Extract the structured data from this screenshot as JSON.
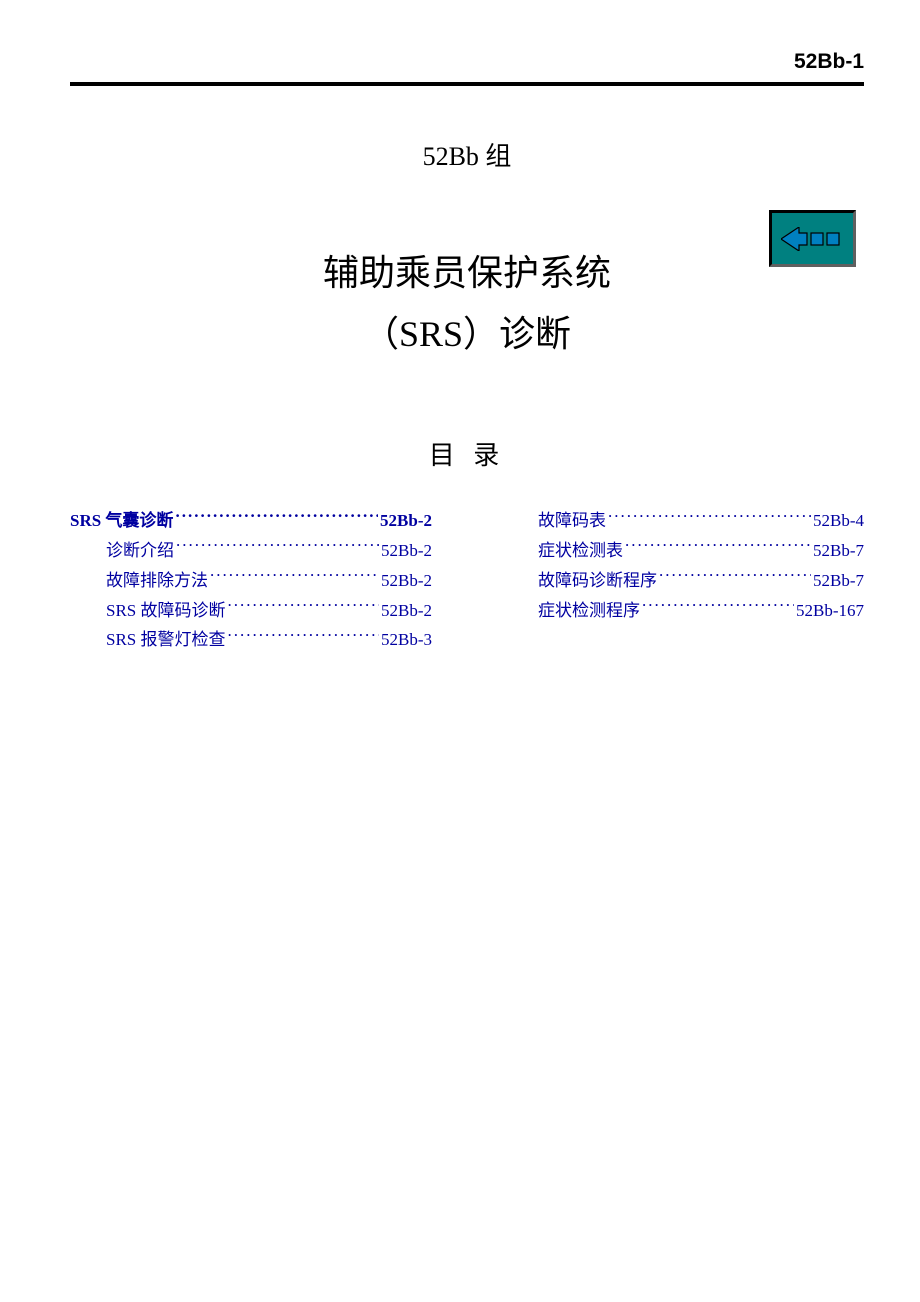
{
  "page_number": "52Bb-1",
  "group_line": "52Bb 组",
  "main_title_line1": "辅助乘员保护系统",
  "main_title_line2": "（SRS）诊断",
  "toc_heading": "目 录",
  "colors": {
    "link": "#0000a0",
    "nav_bg": "#008080",
    "nav_border": "#000000",
    "arrow_fill": "#0080c0",
    "arrow_outline": "#000000",
    "text": "#000000",
    "background": "#ffffff"
  },
  "toc_left": [
    {
      "label": "SRS 气囊诊断",
      "page": "52Bb-2",
      "level": 1
    },
    {
      "label": "诊断介绍",
      "page": "52Bb-2",
      "level": 2
    },
    {
      "label": "故障排除方法",
      "page": "52Bb-2",
      "level": 2
    },
    {
      "label": "SRS 故障码诊断",
      "page": "52Bb-2",
      "level": 2
    },
    {
      "label": "SRS 报警灯检查",
      "page": "52Bb-3",
      "level": 2
    }
  ],
  "toc_right": [
    {
      "label": "故障码表",
      "page": "52Bb-4",
      "level": 2
    },
    {
      "label": "症状检测表",
      "page": "52Bb-7",
      "level": 2
    },
    {
      "label": "故障码诊断程序",
      "page": "52Bb-7",
      "level": 2
    },
    {
      "label": "症状检测程序",
      "page": "52Bb-167",
      "level": 2
    }
  ]
}
